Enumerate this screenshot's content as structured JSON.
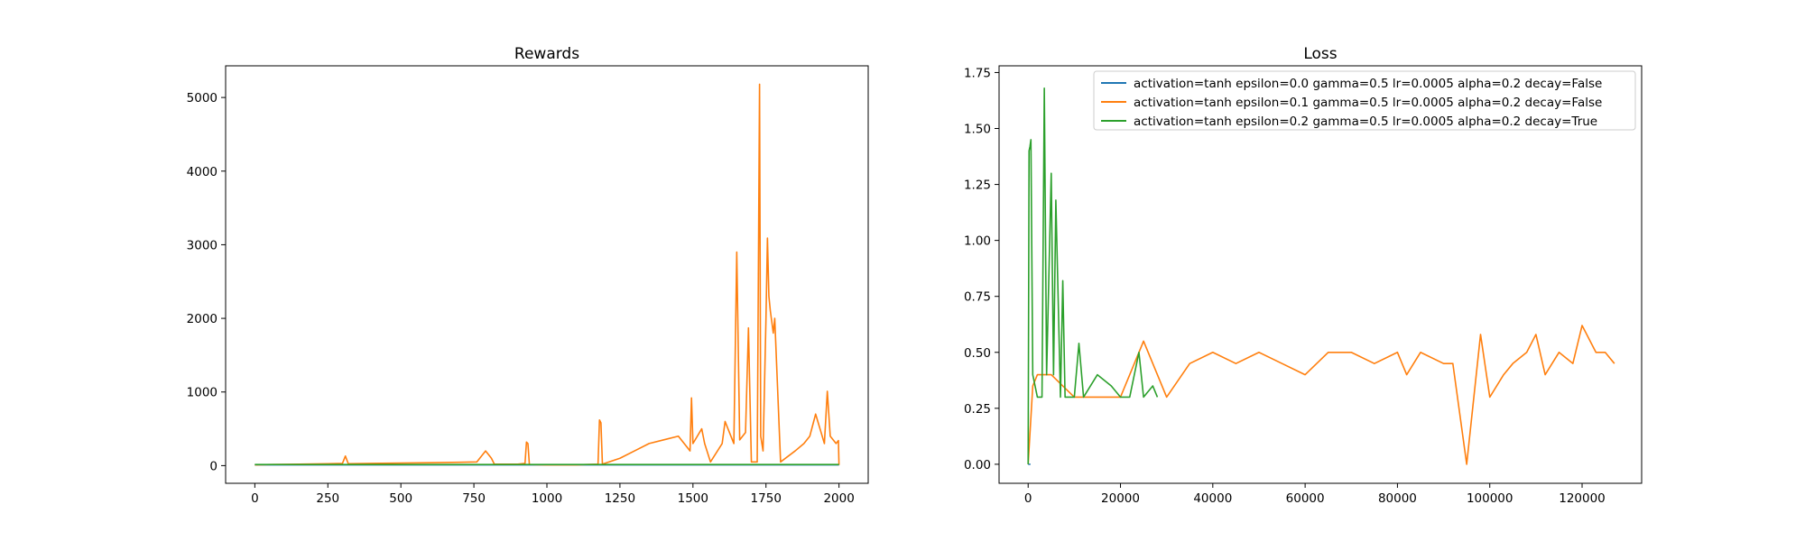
{
  "chart_data": [
    {
      "type": "line",
      "title": "Rewards",
      "xlabel": "",
      "ylabel": "",
      "xlim": [
        -100,
        2100
      ],
      "ylim": [
        -240,
        5430
      ],
      "xticks": [
        0,
        250,
        500,
        750,
        1000,
        1250,
        1500,
        1750,
        2000
      ],
      "yticks": [
        0,
        1000,
        2000,
        3000,
        4000,
        5000
      ],
      "grid": false,
      "series": [
        {
          "color": "#1f77b4",
          "x": [
            0,
            2000
          ],
          "y": [
            10,
            10
          ]
        },
        {
          "color": "#ff7f0e",
          "x": [
            0,
            60,
            150,
            250,
            300,
            310,
            320,
            400,
            500,
            600,
            700,
            760,
            790,
            800,
            810,
            820,
            900,
            925,
            930,
            935,
            940,
            1000,
            1100,
            1175,
            1180,
            1185,
            1190,
            1250,
            1300,
            1350,
            1400,
            1450,
            1490,
            1495,
            1500,
            1530,
            1540,
            1560,
            1600,
            1610,
            1640,
            1650,
            1660,
            1680,
            1690,
            1700,
            1720,
            1728,
            1732,
            1740,
            1750,
            1755,
            1760,
            1765,
            1770,
            1775,
            1780,
            1800,
            1850,
            1880,
            1900,
            1920,
            1950,
            1960,
            1970,
            1990,
            1998,
            2000
          ],
          "y": [
            10,
            15,
            20,
            25,
            30,
            130,
            25,
            30,
            35,
            40,
            45,
            50,
            200,
            150,
            100,
            20,
            20,
            30,
            320,
            300,
            15,
            10,
            10,
            20,
            620,
            580,
            20,
            100,
            200,
            300,
            350,
            400,
            200,
            920,
            300,
            500,
            300,
            50,
            300,
            600,
            300,
            2900,
            350,
            450,
            1870,
            50,
            50,
            5180,
            400,
            200,
            2000,
            3090,
            2300,
            2100,
            1950,
            1800,
            2000,
            50,
            200,
            300,
            400,
            700,
            300,
            1010,
            400,
            300,
            340,
            10
          ]
        },
        {
          "color": "#2ca02c",
          "x": [
            0,
            2000
          ],
          "y": [
            15,
            15
          ]
        }
      ]
    },
    {
      "type": "line",
      "title": "Loss",
      "xlabel": "",
      "ylabel": "",
      "xlim": [
        -6300,
        132900
      ],
      "ylim": [
        -0.085,
        1.78
      ],
      "xticks": [
        0,
        20000,
        40000,
        60000,
        80000,
        100000,
        120000
      ],
      "yticks": [
        0.0,
        0.25,
        0.5,
        0.75,
        1.0,
        1.25,
        1.5,
        1.75
      ],
      "ytick_labels": [
        "0.00",
        "0.25",
        "0.50",
        "0.75",
        "1.00",
        "1.25",
        "1.50",
        "1.75"
      ],
      "grid": false,
      "legend_position": "top-right",
      "series": [
        {
          "name": "activation=tanh epsilon=0.0 gamma=0.5 lr=0.0005 alpha=0.2 decay=False",
          "color": "#1f77b4",
          "x": [
            0,
            500
          ],
          "y": [
            0.0,
            0.0
          ]
        },
        {
          "name": "activation=tanh epsilon=0.1 gamma=0.5 lr=0.0005 alpha=0.2 decay=False",
          "color": "#ff7f0e",
          "x": [
            0,
            1000,
            2000,
            5000,
            10000,
            15000,
            20000,
            25000,
            28000,
            30000,
            35000,
            40000,
            45000,
            50000,
            55000,
            60000,
            65000,
            70000,
            75000,
            80000,
            82000,
            85000,
            90000,
            92000,
            95000,
            98000,
            100000,
            103000,
            105000,
            108000,
            110000,
            112000,
            115000,
            118000,
            120000,
            121000,
            123000,
            125000,
            127000
          ],
          "y": [
            0.0,
            0.35,
            0.4,
            0.4,
            0.3,
            0.3,
            0.3,
            0.55,
            0.4,
            0.3,
            0.45,
            0.5,
            0.45,
            0.5,
            0.45,
            0.4,
            0.5,
            0.5,
            0.45,
            0.5,
            0.4,
            0.5,
            0.45,
            0.45,
            0.0,
            0.58,
            0.3,
            0.4,
            0.45,
            0.5,
            0.58,
            0.4,
            0.5,
            0.45,
            0.62,
            0.58,
            0.5,
            0.5,
            0.45
          ]
        },
        {
          "name": "activation=tanh epsilon=0.2 gamma=0.5 lr=0.0005 alpha=0.2 decay=True",
          "color": "#2ca02c",
          "x": [
            0,
            200,
            400,
            600,
            1000,
            2000,
            3000,
            3500,
            4000,
            5000,
            5500,
            6000,
            7000,
            7500,
            8000,
            10000,
            11000,
            12000,
            15000,
            18000,
            20000,
            22000,
            24000,
            25000,
            27000,
            28000
          ],
          "y": [
            0.0,
            1.4,
            1.42,
            1.45,
            0.4,
            0.3,
            0.3,
            1.68,
            0.4,
            1.3,
            0.4,
            1.18,
            0.3,
            0.82,
            0.3,
            0.3,
            0.54,
            0.3,
            0.4,
            0.35,
            0.3,
            0.3,
            0.5,
            0.3,
            0.35,
            0.3
          ]
        }
      ]
    }
  ]
}
